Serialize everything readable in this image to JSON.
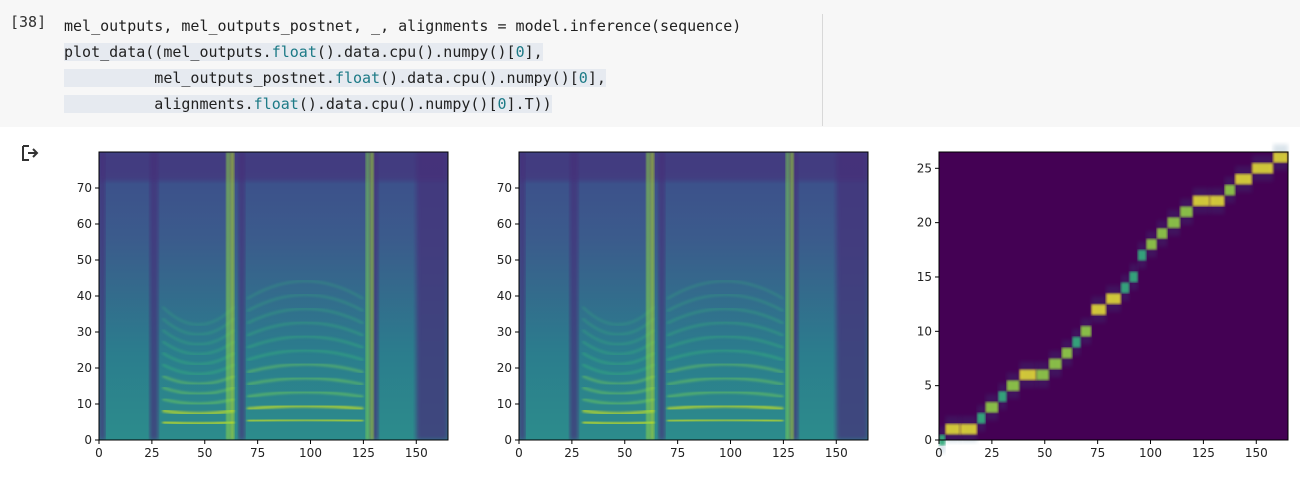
{
  "cell": {
    "prompt": "[38]",
    "code_lines": [
      [
        {
          "t": "mel_outputs, mel_outputs_postnet, _, alignments = model.inference(sequence)",
          "c": ""
        }
      ],
      [
        {
          "t": "plot_data((mel_outputs.",
          "c": ""
        },
        {
          "t": "float",
          "c": "fn"
        },
        {
          "t": "().data.cpu().numpy()[",
          "c": ""
        },
        {
          "t": "0",
          "c": "num"
        },
        {
          "t": "],",
          "c": ""
        }
      ],
      [
        {
          "t": "          mel_outputs_postnet.",
          "c": ""
        },
        {
          "t": "float",
          "c": "fn"
        },
        {
          "t": "().data.cpu().numpy()[",
          "c": ""
        },
        {
          "t": "0",
          "c": "num"
        },
        {
          "t": "],",
          "c": ""
        }
      ],
      [
        {
          "t": "          alignments.",
          "c": ""
        },
        {
          "t": "float",
          "c": "fn"
        },
        {
          "t": "().data.cpu().numpy()[",
          "c": ""
        },
        {
          "t": "0",
          "c": "num"
        },
        {
          "t": "].T))",
          "c": ""
        }
      ]
    ]
  },
  "output": {
    "icon": "output-arrow-icon"
  },
  "chart_data": [
    {
      "type": "heatmap",
      "title": "",
      "x_ticks": [
        "0",
        "25",
        "50",
        "75",
        "100",
        "125",
        "150"
      ],
      "y_ticks": [
        "0",
        "10",
        "20",
        "30",
        "40",
        "50",
        "60",
        "70"
      ],
      "xlim": [
        0,
        165
      ],
      "ylim": [
        0,
        80
      ],
      "colormap": "viridis",
      "content": "mel spectrogram (mel_outputs)"
    },
    {
      "type": "heatmap",
      "title": "",
      "x_ticks": [
        "0",
        "25",
        "50",
        "75",
        "100",
        "125",
        "150"
      ],
      "y_ticks": [
        "0",
        "10",
        "20",
        "30",
        "40",
        "50",
        "60",
        "70"
      ],
      "xlim": [
        0,
        165
      ],
      "ylim": [
        0,
        80
      ],
      "colormap": "viridis",
      "content": "mel spectrogram (mel_outputs_postnet)"
    },
    {
      "type": "heatmap",
      "title": "",
      "x_ticks": [
        "0",
        "25",
        "50",
        "75",
        "100",
        "125",
        "150"
      ],
      "y_ticks": [
        "0",
        "5",
        "10",
        "15",
        "20",
        "25"
      ],
      "xlim": [
        0,
        165
      ],
      "ylim": [
        0,
        26.5
      ],
      "colormap": "viridis",
      "content": "alignment (diagonal)",
      "path": [
        [
          0,
          0
        ],
        [
          3,
          1
        ],
        [
          10,
          1
        ],
        [
          18,
          2
        ],
        [
          22,
          3
        ],
        [
          28,
          4
        ],
        [
          32,
          5
        ],
        [
          38,
          6
        ],
        [
          46,
          6
        ],
        [
          52,
          7
        ],
        [
          58,
          8
        ],
        [
          63,
          9
        ],
        [
          67,
          10
        ],
        [
          72,
          12
        ],
        [
          79,
          13
        ],
        [
          86,
          14
        ],
        [
          90,
          15
        ],
        [
          94,
          17
        ],
        [
          98,
          18
        ],
        [
          103,
          19
        ],
        [
          108,
          20
        ],
        [
          114,
          21
        ],
        [
          120,
          22
        ],
        [
          128,
          22
        ],
        [
          135,
          23
        ],
        [
          140,
          24
        ],
        [
          148,
          25
        ],
        [
          158,
          26
        ],
        [
          165,
          26
        ]
      ]
    }
  ]
}
